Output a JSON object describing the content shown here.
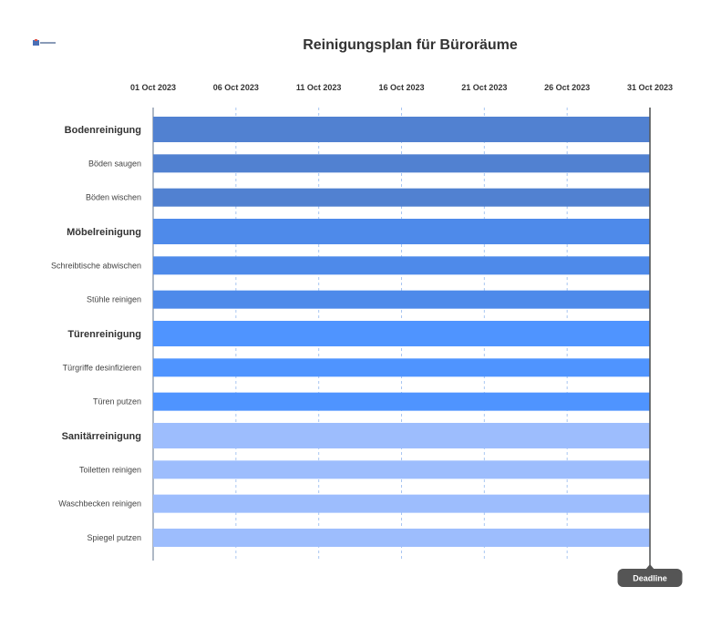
{
  "chart_data": {
    "type": "gantt",
    "title": "Reinigungsplan für Büroräume",
    "x_axis": {
      "type": "date",
      "range": [
        "2023-10-01",
        "2023-10-31"
      ],
      "tick_labels": [
        "01 Oct 2023",
        "06 Oct 2023",
        "11 Oct 2023",
        "16 Oct 2023",
        "21 Oct 2023",
        "26 Oct 2023",
        "31 Oct 2023"
      ],
      "tick_dates": [
        "2023-10-01",
        "2023-10-06",
        "2023-10-11",
        "2023-10-16",
        "2023-10-21",
        "2023-10-26",
        "2023-10-31"
      ],
      "position": "top"
    },
    "grid": "vertical-dashed",
    "tasks": [
      {
        "name": "Bodenreinigung",
        "group": true,
        "start": "2023-10-01",
        "end": "2023-10-31",
        "color": "#5181d1"
      },
      {
        "name": "Böden saugen",
        "group": false,
        "start": "2023-10-01",
        "end": "2023-10-31",
        "color": "#5181d1"
      },
      {
        "name": "Böden wischen",
        "group": false,
        "start": "2023-10-01",
        "end": "2023-10-31",
        "color": "#5181d1"
      },
      {
        "name": "Möbelreinigung",
        "group": true,
        "start": "2023-10-01",
        "end": "2023-10-31",
        "color": "#4e8aea"
      },
      {
        "name": "Schreibtische abwischen",
        "group": false,
        "start": "2023-10-01",
        "end": "2023-10-31",
        "color": "#4e8aea"
      },
      {
        "name": "Stühle reinigen",
        "group": false,
        "start": "2023-10-01",
        "end": "2023-10-31",
        "color": "#4e8aea"
      },
      {
        "name": "Türenreinigung",
        "group": true,
        "start": "2023-10-01",
        "end": "2023-10-31",
        "color": "#4f94ff"
      },
      {
        "name": "Türgriffe desinfizieren",
        "group": false,
        "start": "2023-10-01",
        "end": "2023-10-31",
        "color": "#4f94ff"
      },
      {
        "name": "Türen putzen",
        "group": false,
        "start": "2023-10-01",
        "end": "2023-10-31",
        "color": "#4f94ff"
      },
      {
        "name": "Sanitärreinigung",
        "group": true,
        "start": "2023-10-01",
        "end": "2023-10-31",
        "color": "#9dbdfd"
      },
      {
        "name": "Toiletten reinigen",
        "group": false,
        "start": "2023-10-01",
        "end": "2023-10-31",
        "color": "#9dbdfd"
      },
      {
        "name": "Waschbecken reinigen",
        "group": false,
        "start": "2023-10-01",
        "end": "2023-10-31",
        "color": "#9dbdfd"
      },
      {
        "name": "Spiegel putzen",
        "group": false,
        "start": "2023-10-01",
        "end": "2023-10-31",
        "color": "#9dbdfd"
      }
    ],
    "markers": [
      {
        "label": "Deadline",
        "date": "2023-10-31",
        "color": "#555555"
      }
    ]
  }
}
